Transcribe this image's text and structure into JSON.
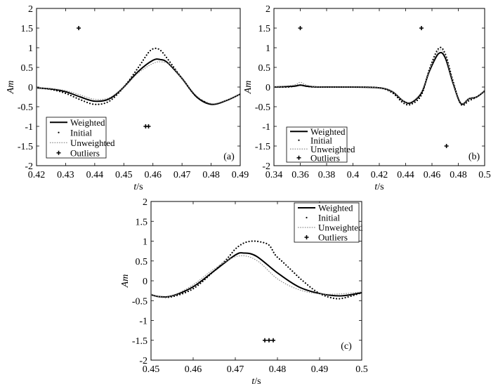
{
  "chart_data": [
    {
      "type": "line",
      "panel_label": "(a)",
      "xlabel_italic": "t",
      "xlabel_unit": "/s",
      "ylabel": "Am",
      "xlim": [
        0.42,
        0.49
      ],
      "ylim": [
        -2,
        2
      ],
      "xticks": [
        "0.42",
        "0.43",
        "0.44",
        "0.45",
        "0.46",
        "0.47",
        "0.48",
        "0.49"
      ],
      "yticks": [
        "-2",
        "-1.5",
        "-1",
        "-0.5",
        "0",
        "0.5",
        "1",
        "1.5",
        "2"
      ],
      "legend": {
        "placement": "bottom-left",
        "entries": [
          "Weighted",
          "Initial",
          "Unweighted",
          "Outliers"
        ]
      },
      "series": [
        {
          "name": "Weighted",
          "style": "solid",
          "x": [
            0.42,
            0.425,
            0.43,
            0.435,
            0.44,
            0.445,
            0.45,
            0.455,
            0.46,
            0.4625,
            0.465,
            0.47,
            0.475,
            0.48,
            0.485,
            0.49
          ],
          "y": [
            -0.02,
            -0.05,
            -0.12,
            -0.25,
            -0.36,
            -0.3,
            0.0,
            0.4,
            0.68,
            0.7,
            0.62,
            0.22,
            -0.25,
            -0.44,
            -0.35,
            -0.18
          ]
        },
        {
          "name": "Initial",
          "style": "dots",
          "x": [
            0.42,
            0.425,
            0.43,
            0.435,
            0.44,
            0.445,
            0.45,
            0.455,
            0.4585,
            0.4605,
            0.4625,
            0.465,
            0.47,
            0.475,
            0.48
          ],
          "y": [
            -0.02,
            -0.06,
            -0.16,
            -0.32,
            -0.44,
            -0.36,
            0.0,
            0.5,
            0.88,
            0.98,
            0.94,
            0.72,
            0.22,
            -0.25,
            -0.44
          ]
        },
        {
          "name": "Unweighted",
          "style": "dotted",
          "x": [
            0.42,
            0.425,
            0.43,
            0.435,
            0.44,
            0.445,
            0.45,
            0.455,
            0.46,
            0.463,
            0.466,
            0.47,
            0.475,
            0.48,
            0.485,
            0.49
          ],
          "y": [
            -0.02,
            -0.04,
            -0.09,
            -0.2,
            -0.31,
            -0.27,
            0.0,
            0.36,
            0.6,
            0.64,
            0.56,
            0.22,
            -0.22,
            -0.42,
            -0.34,
            -0.18
          ]
        }
      ],
      "outliers": {
        "x": [
          0.4345,
          0.4575,
          0.4585
        ],
        "y": [
          1.5,
          -1.0,
          -1.0
        ]
      }
    },
    {
      "type": "line",
      "panel_label": "(b)",
      "xlabel_italic": "t",
      "xlabel_unit": "/s",
      "ylabel": "Am",
      "xlim": [
        0.34,
        0.5
      ],
      "ylim": [
        -2,
        2
      ],
      "xticks": [
        "0.34",
        "0.36",
        "0.38",
        "0.4",
        "0.42",
        "0.44",
        "0.46",
        "0.48",
        "0.5"
      ],
      "yticks": [
        "-2",
        "-1.5",
        "-1",
        "-0.5",
        "0",
        "0.5",
        "1",
        "1.5",
        "2"
      ],
      "legend": {
        "placement": "bottom-left",
        "entries": [
          "Weighted",
          "Initial",
          "Unweighted",
          "Outliers"
        ]
      },
      "series": [
        {
          "name": "Weighted",
          "style": "solid",
          "x": [
            0.34,
            0.355,
            0.36,
            0.365,
            0.375,
            0.4,
            0.42,
            0.43,
            0.438,
            0.444,
            0.452,
            0.458,
            0.465,
            0.47,
            0.476,
            0.482,
            0.488,
            0.494,
            0.5
          ],
          "y": [
            0.0,
            0.02,
            0.05,
            0.02,
            0.0,
            0.0,
            -0.02,
            -0.12,
            -0.35,
            -0.4,
            -0.15,
            0.4,
            0.85,
            0.75,
            0.1,
            -0.42,
            -0.3,
            -0.25,
            -0.1
          ]
        },
        {
          "name": "Initial",
          "style": "dots",
          "x": [
            0.34,
            0.35,
            0.355,
            0.36,
            0.365,
            0.37,
            0.38,
            0.4,
            0.42,
            0.43,
            0.438,
            0.444,
            0.452,
            0.458,
            0.465,
            0.47,
            0.476,
            0.482,
            0.488,
            0.494,
            0.5
          ],
          "y": [
            0.0,
            0.0,
            0.02,
            0.05,
            0.02,
            0.0,
            0.0,
            0.0,
            -0.02,
            -0.15,
            -0.4,
            -0.44,
            -0.2,
            0.45,
            0.98,
            0.85,
            0.15,
            -0.44,
            -0.35,
            -0.25,
            -0.1
          ]
        },
        {
          "name": "Unweighted",
          "style": "dotted",
          "x": [
            0.34,
            0.355,
            0.36,
            0.365,
            0.375,
            0.4,
            0.42,
            0.43,
            0.438,
            0.444,
            0.452,
            0.458,
            0.465,
            0.47,
            0.476,
            0.482,
            0.488,
            0.494,
            0.5
          ],
          "y": [
            0.0,
            0.05,
            0.12,
            0.05,
            0.0,
            0.0,
            -0.02,
            -0.12,
            -0.34,
            -0.38,
            -0.12,
            0.42,
            0.92,
            0.8,
            0.12,
            -0.4,
            -0.3,
            -0.24,
            -0.1
          ]
        }
      ],
      "outliers": {
        "x": [
          0.36,
          0.452,
          0.471
        ],
        "y": [
          1.5,
          1.5,
          -1.5
        ]
      }
    },
    {
      "type": "line",
      "panel_label": "(c)",
      "xlabel_italic": "t",
      "xlabel_unit": "/s",
      "ylabel": "Am",
      "xlim": [
        0.45,
        0.5
      ],
      "ylim": [
        -2,
        2
      ],
      "xticks": [
        "0.45",
        "0.46",
        "0.47",
        "0.48",
        "0.49",
        "0.5"
      ],
      "yticks": [
        "-2",
        "-1.5",
        "-1",
        "-0.5",
        "0",
        "0.5",
        "1",
        "1.5",
        "2"
      ],
      "legend": {
        "placement": "top-right",
        "entries": [
          "Weighted",
          "Initial",
          "Unweighted",
          "Outliers"
        ]
      },
      "series": [
        {
          "name": "Weighted",
          "style": "solid",
          "x": [
            0.45,
            0.452,
            0.455,
            0.46,
            0.465,
            0.47,
            0.472,
            0.475,
            0.48,
            0.485,
            0.49,
            0.495,
            0.5
          ],
          "y": [
            -0.35,
            -0.4,
            -0.38,
            -0.15,
            0.25,
            0.65,
            0.7,
            0.62,
            0.2,
            -0.15,
            -0.32,
            -0.38,
            -0.3
          ]
        },
        {
          "name": "Initial",
          "style": "dots",
          "x": [
            0.45,
            0.452,
            0.455,
            0.46,
            0.465,
            0.468,
            0.47,
            0.472,
            0.474,
            0.476,
            0.478,
            0.4795,
            0.481,
            0.483,
            0.486,
            0.49,
            0.494,
            0.497,
            0.5
          ],
          "y": [
            -0.35,
            -0.4,
            -0.4,
            -0.2,
            0.25,
            0.55,
            0.8,
            0.95,
            1.0,
            0.98,
            0.9,
            0.65,
            0.5,
            0.3,
            0.0,
            -0.32,
            -0.45,
            -0.4,
            -0.3
          ]
        },
        {
          "name": "Unweighted",
          "style": "dotted",
          "x": [
            0.45,
            0.452,
            0.455,
            0.46,
            0.465,
            0.4705,
            0.475,
            0.48,
            0.485,
            0.49,
            0.495,
            0.5
          ],
          "y": [
            -0.35,
            -0.4,
            -0.38,
            -0.1,
            0.3,
            0.62,
            0.52,
            0.05,
            -0.22,
            -0.33,
            -0.33,
            -0.28
          ]
        }
      ],
      "outliers": {
        "x": [
          0.477,
          0.478,
          0.479
        ],
        "y": [
          -1.5,
          -1.5,
          -1.5
        ]
      }
    }
  ]
}
